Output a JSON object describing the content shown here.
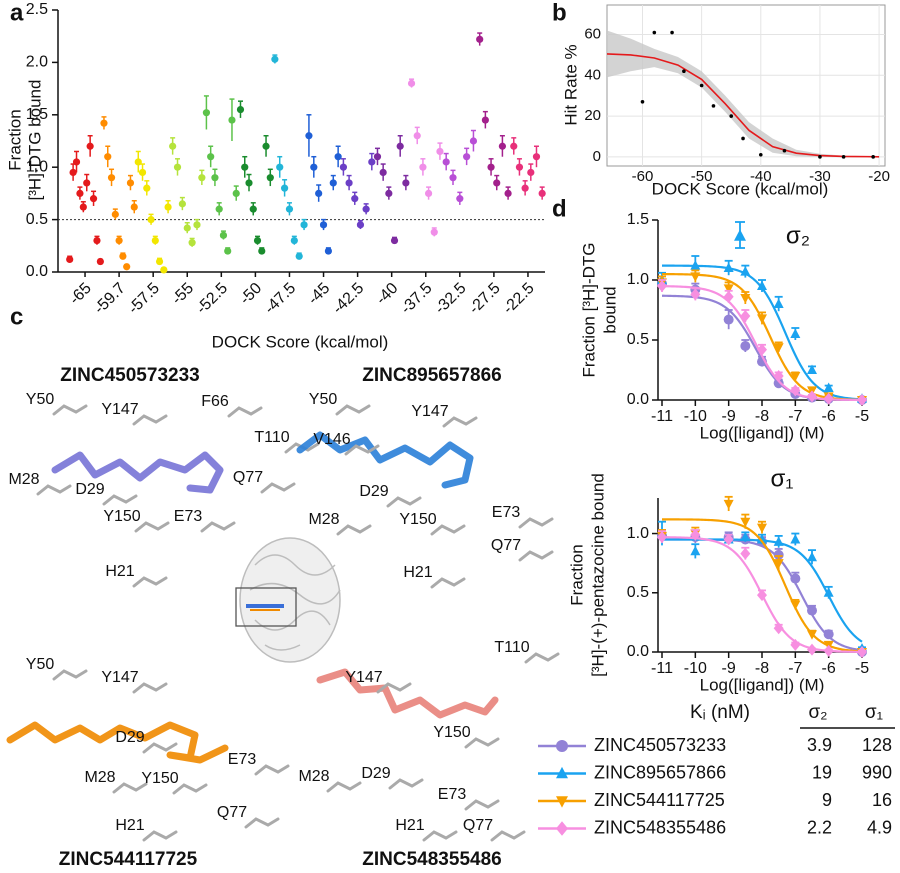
{
  "chart_data": [
    {
      "type": "scatter",
      "panel": "a",
      "y_label": [
        "Fraction",
        "[³H]-DTG bound"
      ],
      "x_label": "DOCK Score (kcal/mol)",
      "ylim": [
        0,
        2.5
      ],
      "yticks": [
        {
          "value": 0,
          "label": "0.0"
        },
        0.5,
        {
          "value": 1,
          "label": "1.0"
        },
        1.5,
        {
          "value": 2,
          "label": "2.0"
        },
        2.5
      ],
      "reference_line": 0.5,
      "groups": [
        {
          "label": "-65",
          "color": "#e41a1c",
          "values": [
            0.12,
            0.95,
            1.05,
            0.75,
            0.62,
            0.85,
            1.2,
            0.7,
            0.3,
            0.1
          ],
          "errors": [
            0.03,
            0.08,
            0.1,
            0.06,
            0.05,
            0.08,
            0.1,
            0.07,
            0.04,
            0.02
          ]
        },
        {
          "label": "-59.7",
          "color": "#ff8c00",
          "values": [
            1.42,
            1.1,
            0.9,
            0.55,
            0.3,
            0.15,
            0.05,
            0.85,
            0.62
          ],
          "errors": [
            0.06,
            0.1,
            0.08,
            0.05,
            0.04,
            0.03,
            0.02,
            0.07,
            0.06
          ]
        },
        {
          "label": "-57.5",
          "color": "#f2e600",
          "values": [
            1.05,
            0.95,
            0.8,
            0.5,
            0.3,
            0.1,
            0.02,
            0.62
          ],
          "errors": [
            0.1,
            0.08,
            0.07,
            0.05,
            0.04,
            0.03,
            0.02,
            0.06
          ]
        },
        {
          "label": "-55",
          "color": "#b5e33c",
          "values": [
            1.2,
            1.0,
            0.65,
            0.42,
            0.28,
            0.45,
            0.9
          ],
          "errors": [
            0.08,
            0.08,
            0.06,
            0.05,
            0.04,
            0.05,
            0.07
          ]
        },
        {
          "label": "-52.5",
          "color": "#5cc24a",
          "values": [
            1.52,
            1.1,
            0.9,
            0.6,
            0.35,
            0.2,
            1.45,
            0.75
          ],
          "errors": [
            0.16,
            0.1,
            0.08,
            0.06,
            0.04,
            0.03,
            0.2,
            0.07
          ]
        },
        {
          "label": "-50",
          "color": "#1a8c2e",
          "values": [
            1.55,
            1.0,
            0.85,
            0.6,
            0.3,
            0.2,
            1.2,
            0.9
          ],
          "errors": [
            0.08,
            0.1,
            0.08,
            0.06,
            0.04,
            0.03,
            0.1,
            0.08
          ]
        },
        {
          "label": "-47.5",
          "color": "#22b5d8",
          "values": [
            2.03,
            1.0,
            0.8,
            0.6,
            0.3,
            0.15,
            0.45
          ],
          "errors": [
            0.04,
            0.1,
            0.08,
            0.06,
            0.04,
            0.03,
            0.05
          ]
        },
        {
          "label": "-45",
          "color": "#1f5fd6",
          "values": [
            1.3,
            1.0,
            0.75,
            0.45,
            0.2,
            0.85,
            1.1
          ],
          "errors": [
            0.2,
            0.1,
            0.08,
            0.05,
            0.03,
            0.07,
            0.1
          ]
        },
        {
          "label": "-42.5",
          "color": "#6b3fc6",
          "values": [
            1.0,
            0.85,
            0.7,
            0.45,
            0.6,
            1.05
          ],
          "errors": [
            0.08,
            0.07,
            0.06,
            0.04,
            0.05,
            0.08
          ]
        },
        {
          "label": "-40",
          "color": "#7d2ba0",
          "values": [
            1.1,
            0.95,
            0.75,
            0.3,
            1.2,
            0.85
          ],
          "errors": [
            0.08,
            0.08,
            0.06,
            0.03,
            0.1,
            0.07
          ]
        },
        {
          "label": "-37.5",
          "color": "#f08ee8",
          "values": [
            1.8,
            1.3,
            1.0,
            0.75,
            0.38,
            1.15
          ],
          "errors": [
            0.04,
            0.08,
            0.08,
            0.06,
            0.04,
            0.08
          ]
        },
        {
          "label": "-32.5",
          "color": "#b84fd6",
          "values": [
            1.05,
            0.9,
            0.7,
            1.1,
            1.25
          ],
          "errors": [
            0.08,
            0.07,
            0.06,
            0.08,
            0.1
          ]
        },
        {
          "label": "-27.5",
          "color": "#a3208c",
          "values": [
            2.22,
            1.45,
            1.0,
            0.85,
            1.2,
            0.75
          ],
          "errors": [
            0.06,
            0.08,
            0.08,
            0.07,
            0.1,
            0.06
          ]
        },
        {
          "label": "-22.5",
          "color": "#e8307a",
          "values": [
            1.2,
            1.0,
            0.8,
            0.95,
            1.1,
            0.75
          ],
          "errors": [
            0.08,
            0.08,
            0.07,
            0.08,
            0.1,
            0.06
          ]
        }
      ]
    },
    {
      "type": "scatter",
      "panel": "b",
      "y_label": "Hit Rate %",
      "x_label": "DOCK Score (kcal/mol)",
      "xlim": [
        -66,
        -19
      ],
      "xticks": [
        -60,
        -50,
        -40,
        -30,
        -20
      ],
      "ylim": [
        -4.5,
        74.5
      ],
      "yticks": [
        0,
        20,
        40,
        60
      ],
      "grid": true,
      "point_color": "#000000",
      "x": [
        -60,
        -58,
        -55,
        -53,
        -50,
        -48,
        -45,
        -43,
        -40,
        -36,
        -30,
        -26,
        -21
      ],
      "values": [
        27,
        61,
        61,
        42,
        35,
        25,
        20,
        9,
        1,
        3,
        0,
        0,
        0
      ],
      "fit": {
        "color": "#e41a1c",
        "band_color": "#c8c8c8",
        "x": [
          -66,
          -62,
          -58,
          -54,
          -50,
          -46,
          -42,
          -38,
          -34,
          -30,
          -26,
          -22,
          -20
        ],
        "values": [
          50.5,
          50,
          48.5,
          45,
          38,
          26,
          13,
          5,
          1.8,
          0.6,
          0.2,
          0.1,
          0
        ],
        "lower": [
          39,
          42,
          44,
          41,
          34,
          22,
          9,
          2,
          0.3,
          0,
          -0.2,
          -0.2,
          -0.2
        ],
        "upper": [
          62,
          58,
          53,
          49,
          42,
          30,
          17,
          9,
          3.5,
          1.5,
          0.6,
          0.3,
          0.2
        ]
      }
    },
    {
      "type": "dose_response",
      "panel": "d",
      "title": "σ₂",
      "y_label": [
        "Fraction [³H]-DTG",
        "bound"
      ],
      "x_label": "Log([ligand]) (M)",
      "xlim": [
        -11,
        -5
      ],
      "xticks": [
        -11,
        -10,
        -9,
        -8,
        -7,
        -6,
        -5
      ],
      "ylim": [
        0,
        1.5
      ],
      "yticks": [
        {
          "value": 0,
          "label": "0.0"
        },
        0.5,
        {
          "value": 1,
          "label": "1.0"
        },
        1.5
      ],
      "x": [
        -11,
        -10,
        -9,
        -8.5,
        -8,
        -7.5,
        -7,
        -6.5,
        -6,
        -5
      ],
      "series": [
        {
          "color": "#9282d6",
          "marker": "circle",
          "values": [
            0.97,
            0.92,
            0.67,
            0.45,
            0.32,
            0.14,
            0.05,
            0.02,
            0.01,
            0
          ],
          "errors": [
            0.06,
            0.05,
            0.08,
            0.05,
            0.04,
            0.03,
            0.02,
            0.01,
            0.01,
            0.01
          ],
          "fit": {
            "top": 0.87,
            "bottom": 0,
            "log_ic50": -8.2,
            "hill": 1
          }
        },
        {
          "color": "#1aa3f0",
          "marker": "triangle",
          "values": [
            1.0,
            1.12,
            1.1,
            1.07,
            0.95,
            0.8,
            0.55,
            0.25,
            0.1,
            0.01
          ],
          "errors": [
            0.06,
            0.08,
            0.06,
            0.05,
            0.05,
            0.06,
            0.05,
            0.03,
            0.02,
            0.01
          ],
          "fit": {
            "top": 1.12,
            "bottom": 0,
            "log_ic50": -7.3,
            "hill": 1
          }
        },
        {
          "color": "#f7a000",
          "marker": "triangle-down",
          "values": [
            0.98,
            1.03,
            0.93,
            0.85,
            0.68,
            0.44,
            0.2,
            0.08,
            0.03,
            0
          ],
          "errors": [
            0.05,
            0.05,
            0.05,
            0.05,
            0.05,
            0.04,
            0.03,
            0.02,
            0.01,
            0.01
          ],
          "fit": {
            "top": 1.05,
            "bottom": 0,
            "log_ic50": -7.75,
            "hill": 1
          }
        },
        {
          "color": "#f78fe0",
          "marker": "diamond",
          "values": [
            0.95,
            0.88,
            0.86,
            0.7,
            0.42,
            0.2,
            0.08,
            0.03,
            0.01,
            0
          ],
          "errors": [
            0.05,
            0.05,
            0.05,
            0.05,
            0.04,
            0.03,
            0.02,
            0.01,
            0.01,
            0.01
          ],
          "fit": {
            "top": 0.95,
            "bottom": 0,
            "log_ic50": -8.2,
            "hill": 1
          }
        }
      ]
    },
    {
      "type": "dose_response",
      "title": "σ₁",
      "y_label": [
        "Fraction",
        "[³H]-(+)-pentazocine bound"
      ],
      "x_label": "Log([ligand]) (M)",
      "xlim": [
        -11,
        -5
      ],
      "xticks": [
        -11,
        -10,
        -9,
        -8,
        -7,
        -6,
        -5
      ],
      "ylim": [
        0,
        1.3
      ],
      "yticks": [
        {
          "value": 0,
          "label": "0.0"
        },
        0.5,
        {
          "value": 1,
          "label": "1.0"
        }
      ],
      "x": [
        -11,
        -10,
        -9,
        -8.5,
        -8,
        -7.5,
        -7,
        -6.5,
        -6,
        -5
      ],
      "series": [
        {
          "color": "#9282d6",
          "marker": "circle",
          "values": [
            0.98,
            0.97,
            0.97,
            0.95,
            0.93,
            0.82,
            0.62,
            0.35,
            0.15,
            0
          ],
          "errors": [
            0.05,
            0.05,
            0.04,
            0.04,
            0.04,
            0.05,
            0.05,
            0.04,
            0.03,
            0.01
          ],
          "fit": {
            "top": 0.95,
            "bottom": 0,
            "log_ic50": -6.8,
            "hill": 1
          }
        },
        {
          "color": "#1aa3f0",
          "marker": "triangle",
          "values": [
            1.0,
            0.85,
            0.95,
            0.97,
            0.95,
            0.93,
            0.95,
            0.8,
            0.5,
            0.03
          ],
          "errors": [
            0.1,
            0.06,
            0.04,
            0.04,
            0.04,
            0.05,
            0.05,
            0.06,
            0.05,
            0.01
          ],
          "fit": {
            "top": 0.95,
            "bottom": 0,
            "log_ic50": -6.0,
            "hill": 1
          }
        },
        {
          "color": "#f7a000",
          "marker": "triangle-down",
          "values": [
            0.98,
            1.0,
            1.25,
            1.1,
            1.05,
            0.75,
            0.4,
            0.15,
            0.06,
            0
          ],
          "errors": [
            0.05,
            0.05,
            0.06,
            0.06,
            0.05,
            0.06,
            0.04,
            0.03,
            0.02,
            0.01
          ],
          "fit": {
            "top": 1.12,
            "bottom": 0,
            "log_ic50": -7.3,
            "hill": 1
          }
        },
        {
          "color": "#f78fe0",
          "marker": "diamond",
          "values": [
            0.97,
            0.99,
            0.95,
            0.83,
            0.48,
            0.2,
            0.06,
            0.02,
            0.01,
            0
          ],
          "errors": [
            0.05,
            0.04,
            0.04,
            0.05,
            0.04,
            0.03,
            0.02,
            0.01,
            0.01,
            0.01
          ],
          "fit": {
            "top": 0.97,
            "bottom": 0,
            "log_ic50": -8.0,
            "hill": 1
          }
        }
      ]
    }
  ],
  "ki_table": {
    "header": "Kᵢ (nM)",
    "columns": [
      "σ₂",
      "σ₁"
    ],
    "rows": [
      {
        "name": "ZINC450573233",
        "values": [
          3.9,
          128
        ]
      },
      {
        "name": "ZINC895657866",
        "values": [
          19,
          990
        ]
      },
      {
        "name": "ZINC544117725",
        "values": [
          9,
          16
        ]
      },
      {
        "name": "ZINC548355486",
        "values": [
          2.2,
          4.9
        ]
      }
    ]
  },
  "panel_c": {
    "panel": "c",
    "structures": [
      {
        "name": "ZINC450573233",
        "residues": [
          "Y50",
          "Y147",
          "F66",
          "T110",
          "M28",
          "D29",
          "Q77",
          "Y150",
          "E73",
          "H21"
        ]
      },
      {
        "name": "ZINC895657866",
        "residues": [
          "Y50",
          "Y147",
          "V146",
          "D29",
          "M28",
          "Y150",
          "E73",
          "Q77",
          "H21"
        ]
      },
      {
        "name": "ZINC544117725",
        "residues": [
          "Y50",
          "Y147",
          "D29",
          "M28",
          "Y150",
          "E73",
          "Q77",
          "H21"
        ]
      },
      {
        "name": "ZINC548355486",
        "residues": [
          "Y147",
          "T110",
          "Y150",
          "D29",
          "M28",
          "E73",
          "H21",
          "Q77"
        ]
      }
    ]
  }
}
